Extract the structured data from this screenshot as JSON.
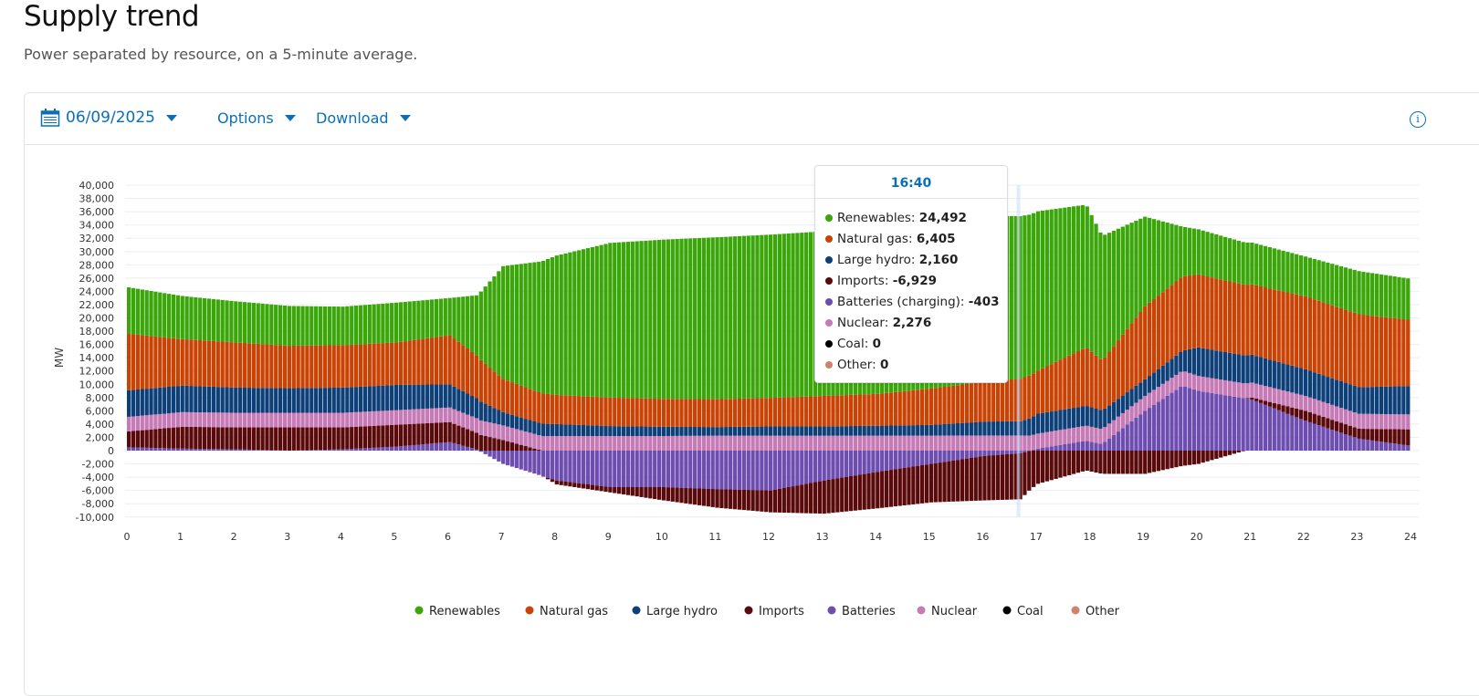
{
  "header": {
    "title": "Supply trend",
    "subtitle": "Power separated by resource, on a 5-minute average."
  },
  "toolbar": {
    "date": "06/09/2025",
    "options": "Options",
    "download": "Download",
    "icons": [
      "calendar-icon",
      "info-icon"
    ]
  },
  "tooltip": {
    "time": "16:40",
    "rows": [
      {
        "label": "Renewables:",
        "value": "24,492",
        "color": "#3aa60a"
      },
      {
        "label": "Natural gas:",
        "value": "6,405",
        "color": "#c94305"
      },
      {
        "label": "Large hydro:",
        "value": "2,160",
        "color": "#0d3f78"
      },
      {
        "label": "Imports:",
        "value": "-6,929",
        "color": "#5a0a0a"
      },
      {
        "label": "Batteries (charging):",
        "value": "-403",
        "color": "#6e4db0"
      },
      {
        "label": "Nuclear:",
        "value": "2,276",
        "color": "#c67bb6"
      },
      {
        "label": "Coal:",
        "value": "0",
        "color": "#000000"
      },
      {
        "label": "Other:",
        "value": "0",
        "color": "#d0826a"
      }
    ]
  },
  "chart_data": {
    "type": "bar",
    "stacked": true,
    "title": "Supply trend",
    "ylabel": "MW",
    "xlabel": "",
    "ylim": [
      -10000,
      40000
    ],
    "yticks": [
      "-10,000",
      "-8,000",
      "-6,000",
      "-4,000",
      "-2,000",
      "0",
      "2,000",
      "4,000",
      "6,000",
      "8,000",
      "10,000",
      "12,000",
      "14,000",
      "16,000",
      "18,000",
      "20,000",
      "22,000",
      "24,000",
      "26,000",
      "28,000",
      "30,000",
      "32,000",
      "34,000",
      "36,000",
      "38,000",
      "40,000"
    ],
    "xticks": [
      "0",
      "1",
      "2",
      "3",
      "4",
      "5",
      "6",
      "7",
      "8",
      "9",
      "10",
      "11",
      "12",
      "13",
      "14",
      "15",
      "16",
      "17",
      "18",
      "19",
      "20",
      "21",
      "22",
      "23",
      "24"
    ],
    "xlim": [
      0,
      24
    ],
    "interval_minutes": 5,
    "legend_position": "bottom",
    "highlight_hour": 16.67,
    "series": [
      {
        "name": "Batteries",
        "color": "#6e4db0"
      },
      {
        "name": "Imports",
        "color": "#5a0a0a"
      },
      {
        "name": "Nuclear",
        "color": "#c67bb6"
      },
      {
        "name": "Large hydro",
        "color": "#0d3f78"
      },
      {
        "name": "Natural gas",
        "color": "#c94305"
      },
      {
        "name": "Renewables",
        "color": "#3aa60a"
      },
      {
        "name": "Coal",
        "color": "#000000"
      },
      {
        "name": "Other",
        "color": "#d0826a"
      }
    ],
    "legend": [
      "Renewables",
      "Natural gas",
      "Large hydro",
      "Imports",
      "Batteries",
      "Nuclear",
      "Coal",
      "Other"
    ],
    "points_hour": [
      0,
      1,
      2,
      3,
      4,
      5,
      6,
      6.5,
      7,
      8,
      9,
      10,
      11,
      12,
      13,
      14,
      15,
      16,
      16.67,
      17,
      17.9,
      18.2,
      19,
      19.7,
      20,
      21,
      22,
      23,
      24
    ],
    "values_mw": {
      "Batteries": [
        500,
        300,
        200,
        0,
        200,
        600,
        1300,
        200,
        -2000,
        -4500,
        -5500,
        -5500,
        -5800,
        -6000,
        -4500,
        -3200,
        -2000,
        -800,
        -403,
        300,
        1500,
        1000,
        6000,
        9800,
        9000,
        7700,
        4500,
        1800,
        700
      ],
      "Imports": [
        2400,
        3300,
        3300,
        3500,
        3300,
        3300,
        3000,
        2500,
        1600,
        -600,
        -800,
        -2000,
        -2800,
        -3300,
        -5000,
        -5500,
        -5800,
        -6700,
        -6929,
        -5000,
        -3000,
        -3500,
        -3500,
        -2300,
        -2000,
        300,
        1500,
        1500,
        2500
      ],
      "Nuclear": [
        2200,
        2200,
        2200,
        2200,
        2200,
        2200,
        2200,
        2200,
        2200,
        2200,
        2200,
        2200,
        2250,
        2250,
        2250,
        2250,
        2270,
        2276,
        2276,
        2270,
        2260,
        2250,
        2250,
        2250,
        2250,
        2250,
        2250,
        2250,
        2250
      ],
      "Large hydro": [
        4000,
        4000,
        3800,
        3700,
        3800,
        3800,
        3500,
        3000,
        2000,
        1800,
        1500,
        1400,
        1300,
        1400,
        1400,
        1500,
        1600,
        2100,
        2160,
        3000,
        3000,
        2800,
        2500,
        3000,
        4300,
        4200,
        4000,
        4000,
        4300
      ],
      "Natural gas": [
        8500,
        7000,
        6800,
        6400,
        6400,
        6400,
        7400,
        6500,
        5000,
        4400,
        4300,
        4200,
        4200,
        4300,
        4600,
        4800,
        5500,
        6000,
        6405,
        6500,
        8800,
        7500,
        11000,
        11200,
        11000,
        10600,
        11000,
        11000,
        9900
      ],
      "Renewables": [
        7000,
        6500,
        6200,
        6000,
        5800,
        6000,
        5600,
        9000,
        17000,
        21000,
        23300,
        24000,
        24400,
        24600,
        24800,
        25400,
        25600,
        25000,
        24492,
        24000,
        21500,
        18800,
        13500,
        7500,
        6800,
        6300,
        6000,
        6500,
        6200
      ],
      "Coal": [
        0,
        0,
        0,
        0,
        0,
        0,
        0,
        0,
        0,
        0,
        0,
        0,
        0,
        0,
        0,
        0,
        0,
        0,
        0,
        0,
        0,
        0,
        0,
        0,
        0,
        0,
        0,
        0,
        0
      ],
      "Other": [
        0,
        0,
        0,
        0,
        0,
        0,
        0,
        0,
        0,
        0,
        0,
        0,
        0,
        0,
        0,
        0,
        0,
        0,
        0,
        0,
        0,
        0,
        0,
        0,
        0,
        0,
        0,
        0,
        0
      ]
    }
  }
}
